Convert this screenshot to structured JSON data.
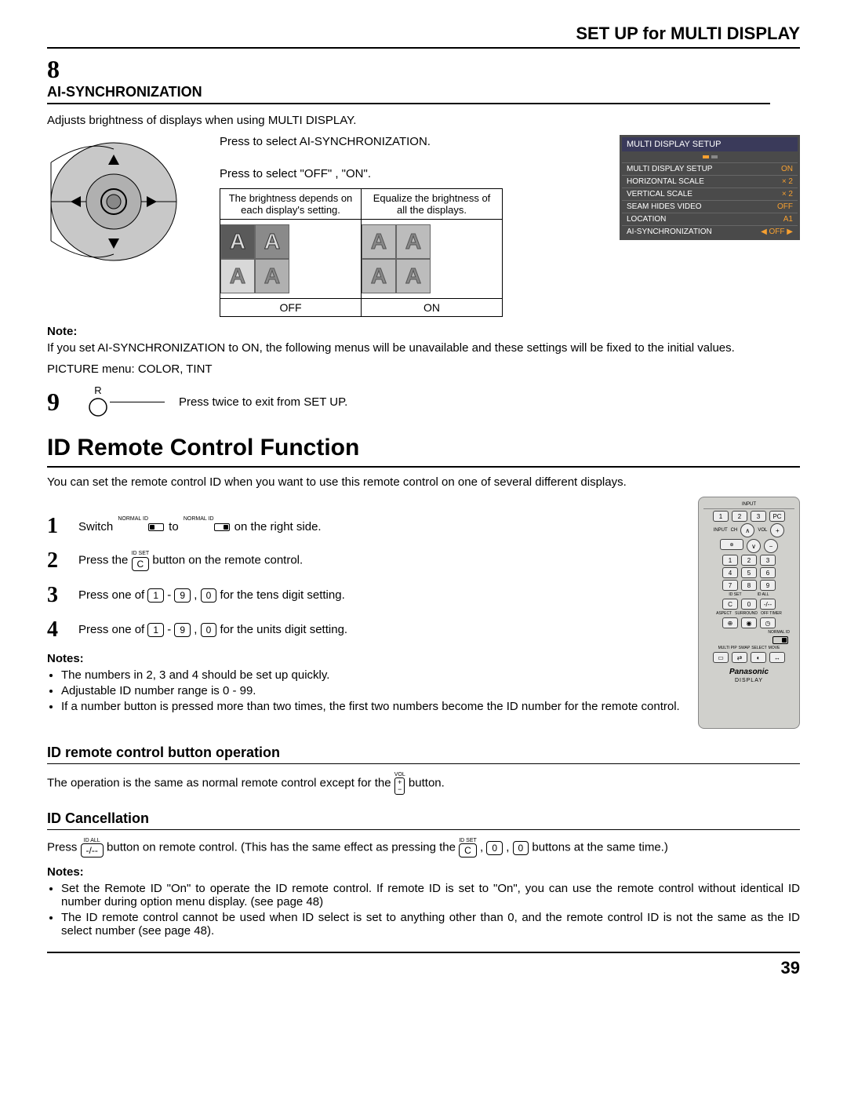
{
  "header": {
    "title": "SET UP for MULTI DISPLAY"
  },
  "section8": {
    "num": "8",
    "title": "AI-SYNCHRONIZATION",
    "desc": "Adjusts brightness of displays when using MULTI DISPLAY.",
    "press1": "Press to select AI-SYNCHRONIZATION.",
    "press2": "Press to select \"OFF\" , \"ON\".",
    "table": {
      "hdr_off": "The brightness depends on each display's setting.",
      "hdr_on": "Equalize the brightness of all the displays.",
      "off_label": "OFF",
      "on_label": "ON"
    },
    "osd": {
      "title": "MULTI DISPLAY SETUP",
      "rows": [
        {
          "k": "MULTI DISPLAY SETUP",
          "v": "ON"
        },
        {
          "k": "HORIZONTAL SCALE",
          "v": "× 2"
        },
        {
          "k": "VERTICAL SCALE",
          "v": "× 2"
        },
        {
          "k": "SEAM HIDES VIDEO",
          "v": "OFF"
        },
        {
          "k": "LOCATION",
          "v": "A1"
        },
        {
          "k": "AI-SYNCHRONIZATION",
          "v": "OFF"
        }
      ]
    },
    "note_label": "Note:",
    "note_text": "If you set AI-SYNCHRONIZATION to ON, the following menus will be unavailable and these settings will be fixed to the initial values.",
    "note_text2": "PICTURE menu: COLOR, TINT",
    "grid": {
      "off_colors": [
        "#5a5a5a",
        "#8a8a8a",
        "#d8d8d8",
        "#b0b0b0"
      ],
      "on_colors": [
        "#bcbcbc",
        "#bcbcbc",
        "#bcbcbc",
        "#bcbcbc"
      ],
      "glyph_color_outline": "#888888",
      "glyph": "A"
    }
  },
  "section9": {
    "num": "9",
    "r_label": "R",
    "text": "Press twice to exit from SET UP."
  },
  "id_remote": {
    "title": "ID Remote Control Function",
    "intro": "You can set the remote control ID when you want to use this remote control on one of several different displays.",
    "step1": {
      "n": "1",
      "pre": "Switch ",
      "mid": " to ",
      "post": " on the right side.",
      "sw_label": "NORMAL    ID"
    },
    "step2": {
      "n": "2",
      "pre": "Press the ",
      "post": " button on the remote control.",
      "key": "C",
      "key_label": "ID SET"
    },
    "step3": {
      "n": "3",
      "pre": "Press one of ",
      "k1": "1",
      "dash": " - ",
      "k9": "9",
      "comma": ", ",
      "k0": "0",
      "post": " for the tens digit setting."
    },
    "step4": {
      "n": "4",
      "pre": "Press one of ",
      "k1": "1",
      "dash": " - ",
      "k9": "9",
      "comma": ", ",
      "k0": "0",
      "post": " for the units digit setting."
    },
    "notes_label": "Notes:",
    "notes": [
      "The numbers in 2, 3 and 4 should be set up quickly.",
      "Adjustable ID number range is 0 - 99.",
      "If a number button is pressed more than two times, the first two numbers become the ID number for the remote control."
    ],
    "remote_illus": {
      "top_label": "INPUT",
      "ch_label": "CH",
      "vol_label": "VOL",
      "row1": [
        "1",
        "2",
        "3",
        "PC"
      ],
      "input_btn": "INPUT",
      "arrows": [
        "∧",
        "∨"
      ],
      "plusminus": [
        "+",
        "−"
      ],
      "numpad": [
        [
          "1",
          "2",
          "3"
        ],
        [
          "4",
          "5",
          "6"
        ],
        [
          "7",
          "8",
          "9"
        ]
      ],
      "bottom_row_labels": [
        "ID SET",
        "",
        "ID ALL"
      ],
      "bottom_row": [
        "C",
        "0",
        "-/--"
      ],
      "labels_small": [
        "ASPECT",
        "SURROUND",
        "OFF TIMER"
      ],
      "normal_id": "NORMAL    ID",
      "multi_row": [
        "MULTI PIP",
        "SWAP",
        "SELECT",
        "MOVE"
      ],
      "brand": "Panasonic",
      "sub": "DISPLAY"
    }
  },
  "button_op": {
    "title": "ID remote control button operation",
    "text_pre": "The operation is the same as normal remote control except for the ",
    "text_post": " button.",
    "vol_label": "VOL",
    "vol_plus": "+",
    "vol_minus": "−"
  },
  "cancellation": {
    "title": "ID Cancellation",
    "pre": "Press ",
    "key1": "-/--",
    "key1_label": "ID ALL",
    "mid": " button on remote control. (This has the same effect as pressing the ",
    "kC": "C",
    "kC_label": "ID SET",
    "k0a": "0",
    "k0b": "0",
    "comma": ", ",
    "post": " buttons at the same time.)",
    "notes_label": "Notes:",
    "notes": [
      "Set the Remote ID \"On\" to operate the ID remote control.\nIf remote ID is set to \"On\", you can use the remote control without identical ID number during option menu display. (see page 48)",
      "The ID remote control cannot be used when ID select is set to anything other than 0, and the remote control ID is not the same as the ID select number (see page 48)."
    ]
  },
  "page_number": "39"
}
